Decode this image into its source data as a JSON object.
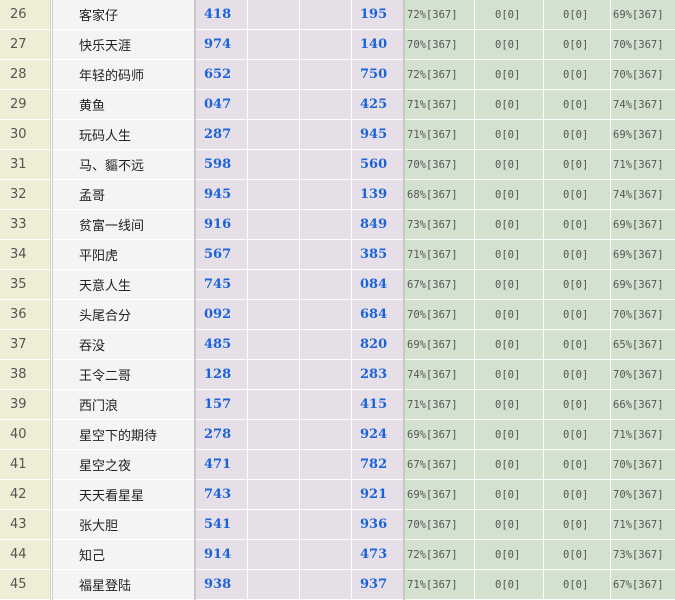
{
  "rows": [
    {
      "rank": "26",
      "name": "客家仔",
      "a": "418",
      "b": "",
      "c": "",
      "d": "195",
      "e": "72%[367]",
      "f": "0[0]",
      "g": "0[0]",
      "h": "69%[367]"
    },
    {
      "rank": "27",
      "name": "快乐天涯",
      "a": "974",
      "b": "",
      "c": "",
      "d": "140",
      "e": "70%[367]",
      "f": "0[0]",
      "g": "0[0]",
      "h": "70%[367]"
    },
    {
      "rank": "28",
      "name": "年轻的码师",
      "a": "652",
      "b": "",
      "c": "",
      "d": "750",
      "e": "72%[367]",
      "f": "0[0]",
      "g": "0[0]",
      "h": "70%[367]"
    },
    {
      "rank": "29",
      "name": "黄鱼",
      "a": "047",
      "b": "",
      "c": "",
      "d": "425",
      "e": "71%[367]",
      "f": "0[0]",
      "g": "0[0]",
      "h": "74%[367]"
    },
    {
      "rank": "30",
      "name": "玩码人生",
      "a": "287",
      "b": "",
      "c": "",
      "d": "945",
      "e": "71%[367]",
      "f": "0[0]",
      "g": "0[0]",
      "h": "69%[367]"
    },
    {
      "rank": "31",
      "name": "马、貙不远",
      "a": "598",
      "b": "",
      "c": "",
      "d": "560",
      "e": "70%[367]",
      "f": "0[0]",
      "g": "0[0]",
      "h": "71%[367]"
    },
    {
      "rank": "32",
      "name": "孟哥",
      "a": "945",
      "b": "",
      "c": "",
      "d": "139",
      "e": "68%[367]",
      "f": "0[0]",
      "g": "0[0]",
      "h": "74%[367]"
    },
    {
      "rank": "33",
      "name": "贫富一线间",
      "a": "916",
      "b": "",
      "c": "",
      "d": "849",
      "e": "73%[367]",
      "f": "0[0]",
      "g": "0[0]",
      "h": "69%[367]"
    },
    {
      "rank": "34",
      "name": "平阳虎",
      "a": "567",
      "b": "",
      "c": "",
      "d": "385",
      "e": "71%[367]",
      "f": "0[0]",
      "g": "0[0]",
      "h": "69%[367]"
    },
    {
      "rank": "35",
      "name": "天意人生",
      "a": "745",
      "b": "",
      "c": "",
      "d": "084",
      "e": "67%[367]",
      "f": "0[0]",
      "g": "0[0]",
      "h": "69%[367]"
    },
    {
      "rank": "36",
      "name": "头尾合分",
      "a": "092",
      "b": "",
      "c": "",
      "d": "684",
      "e": "70%[367]",
      "f": "0[0]",
      "g": "0[0]",
      "h": "70%[367]"
    },
    {
      "rank": "37",
      "name": "吞没",
      "a": "485",
      "b": "",
      "c": "",
      "d": "820",
      "e": "69%[367]",
      "f": "0[0]",
      "g": "0[0]",
      "h": "65%[367]"
    },
    {
      "rank": "38",
      "name": "王令二哥",
      "a": "128",
      "b": "",
      "c": "",
      "d": "283",
      "e": "74%[367]",
      "f": "0[0]",
      "g": "0[0]",
      "h": "70%[367]"
    },
    {
      "rank": "39",
      "name": "西门浪",
      "a": "157",
      "b": "",
      "c": "",
      "d": "415",
      "e": "71%[367]",
      "f": "0[0]",
      "g": "0[0]",
      "h": "66%[367]"
    },
    {
      "rank": "40",
      "name": "星空下的期待",
      "a": "278",
      "b": "",
      "c": "",
      "d": "924",
      "e": "69%[367]",
      "f": "0[0]",
      "g": "0[0]",
      "h": "71%[367]"
    },
    {
      "rank": "41",
      "name": "星空之夜",
      "a": "471",
      "b": "",
      "c": "",
      "d": "782",
      "e": "67%[367]",
      "f": "0[0]",
      "g": "0[0]",
      "h": "70%[367]"
    },
    {
      "rank": "42",
      "name": "天天看星星",
      "a": "743",
      "b": "",
      "c": "",
      "d": "921",
      "e": "69%[367]",
      "f": "0[0]",
      "g": "0[0]",
      "h": "70%[367]"
    },
    {
      "rank": "43",
      "name": "张大胆",
      "a": "541",
      "b": "",
      "c": "",
      "d": "936",
      "e": "70%[367]",
      "f": "0[0]",
      "g": "0[0]",
      "h": "71%[367]"
    },
    {
      "rank": "44",
      "name": "知己",
      "a": "914",
      "b": "",
      "c": "",
      "d": "473",
      "e": "72%[367]",
      "f": "0[0]",
      "g": "0[0]",
      "h": "73%[367]"
    },
    {
      "rank": "45",
      "name": "福星登陆",
      "a": "938",
      "b": "",
      "c": "",
      "d": "937",
      "e": "71%[367]",
      "f": "0[0]",
      "g": "0[0]",
      "h": "67%[367]"
    }
  ]
}
